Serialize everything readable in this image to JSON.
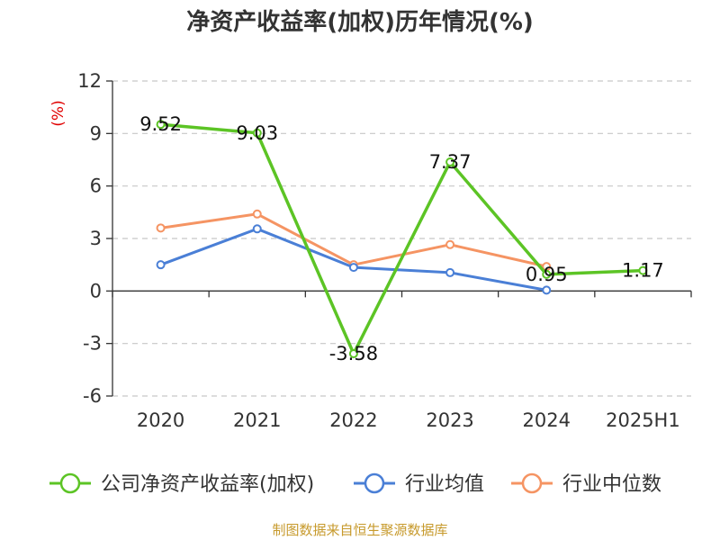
{
  "title": "净资产收益率(加权)历年情况(%)",
  "source_note": "制图数据来自恒生聚源数据库",
  "chart_data": {
    "type": "line",
    "title": "净资产收益率(加权)历年情况(%)",
    "y_unit_label": "(%)",
    "categories": [
      "2020",
      "2021",
      "2022",
      "2023",
      "2024",
      "2025H1"
    ],
    "ylim": [
      -6,
      12
    ],
    "yticks": [
      -6,
      -3,
      0,
      3,
      6,
      9,
      12
    ],
    "grid": true,
    "legend_position": "bottom",
    "series": [
      {
        "name": "公司净资产收益率(加权)",
        "color": "#5cc425",
        "values": [
          9.52,
          9.03,
          -3.58,
          7.37,
          0.95,
          1.17
        ],
        "labels": [
          "9.52",
          "9.03",
          "-3.58",
          "7.37",
          "0.95",
          "1.17"
        ]
      },
      {
        "name": "行业均值",
        "color": "#4a7fd6",
        "values": [
          1.5,
          3.55,
          1.35,
          1.05,
          0.05,
          null
        ],
        "labels": []
      },
      {
        "name": "行业中位数",
        "color": "#f59463",
        "values": [
          3.6,
          4.4,
          1.5,
          2.65,
          1.4,
          null
        ],
        "labels": []
      }
    ]
  }
}
